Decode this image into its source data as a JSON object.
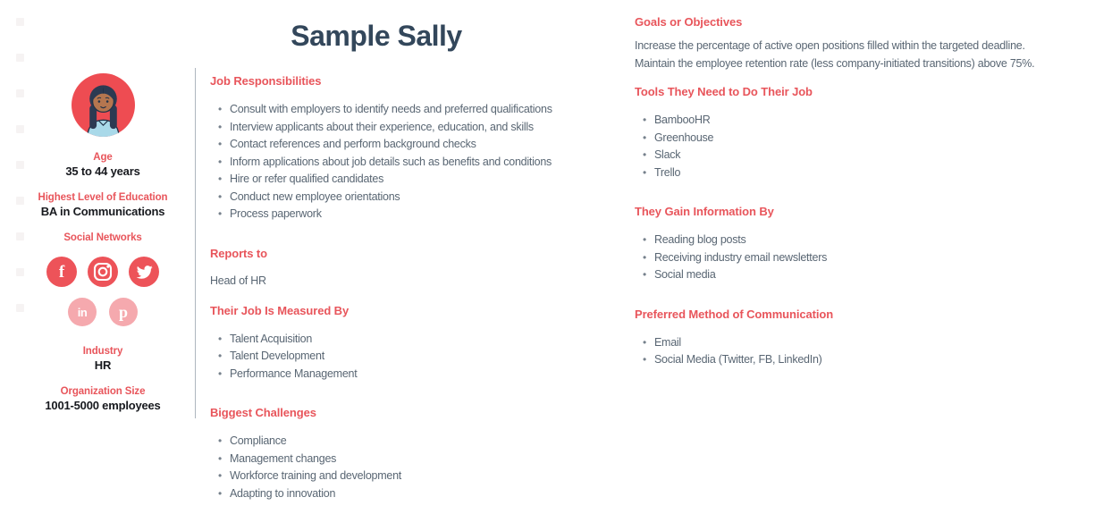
{
  "page": {
    "title": "Sample Sally"
  },
  "colors": {
    "accent_red": "#e8555b",
    "title_navy": "#33475b",
    "body_text": "#596673",
    "social_active": "#ed5359",
    "social_inactive": "#f5a9ae",
    "avatar_background": "#ee4c52"
  },
  "sidebar": {
    "avatar": "woman-with-braids-illustration",
    "fields": [
      {
        "label": "Age",
        "value": "35 to 44 years"
      },
      {
        "label": "Highest Level of Education",
        "value": "BA in Communications"
      }
    ],
    "social": {
      "label": "Social Networks",
      "icons": [
        {
          "name": "facebook",
          "glyph": "f",
          "active": true
        },
        {
          "name": "instagram",
          "glyph": "",
          "active": true
        },
        {
          "name": "twitter",
          "glyph": "",
          "active": true
        },
        {
          "name": "linkedin",
          "glyph": "in",
          "active": false
        },
        {
          "name": "pinterest",
          "glyph": "p",
          "active": false
        }
      ]
    },
    "fields2": [
      {
        "label": "Industry",
        "value": "HR"
      },
      {
        "label": "Organization Size",
        "value": "1001-5000 employees"
      }
    ]
  },
  "middle": {
    "sections": [
      {
        "heading": "Job Responsibilities",
        "items": [
          "Consult with employers to identify needs and preferred qualifications",
          "Interview applicants about their experience, education, and skills",
          "Contact references and perform background checks",
          "Inform applications about job details such as benefits and conditions",
          "Hire or refer qualified candidates",
          "Conduct new employee orientations",
          "Process paperwork"
        ]
      },
      {
        "heading": "Reports to",
        "text": "Head of HR"
      },
      {
        "heading": "Their Job Is Measured By",
        "items": [
          "Talent Acquisition",
          "Talent Development",
          "Performance Management"
        ]
      },
      {
        "heading": "Biggest Challenges",
        "items": [
          "Compliance",
          "Management changes",
          "Workforce training and development",
          "Adapting to innovation"
        ]
      }
    ]
  },
  "right": {
    "sections": [
      {
        "heading": "Goals or Objectives",
        "lines": [
          "Increase the percentage of active open positions filled within the targeted deadline.",
          "Maintain the employee retention rate (less company-initiated transitions) above 75%."
        ]
      },
      {
        "heading": "Tools They Need to Do Their Job",
        "items": [
          "BambooHR",
          "Greenhouse",
          "Slack",
          "Trello"
        ]
      },
      {
        "heading": "They Gain Information By",
        "items": [
          "Reading blog posts",
          "Receiving industry email newsletters",
          "Social media"
        ]
      },
      {
        "heading": "Preferred Method of Communication",
        "items": [
          "Email",
          "Social Media (Twitter, FB, LinkedIn)"
        ]
      }
    ]
  }
}
